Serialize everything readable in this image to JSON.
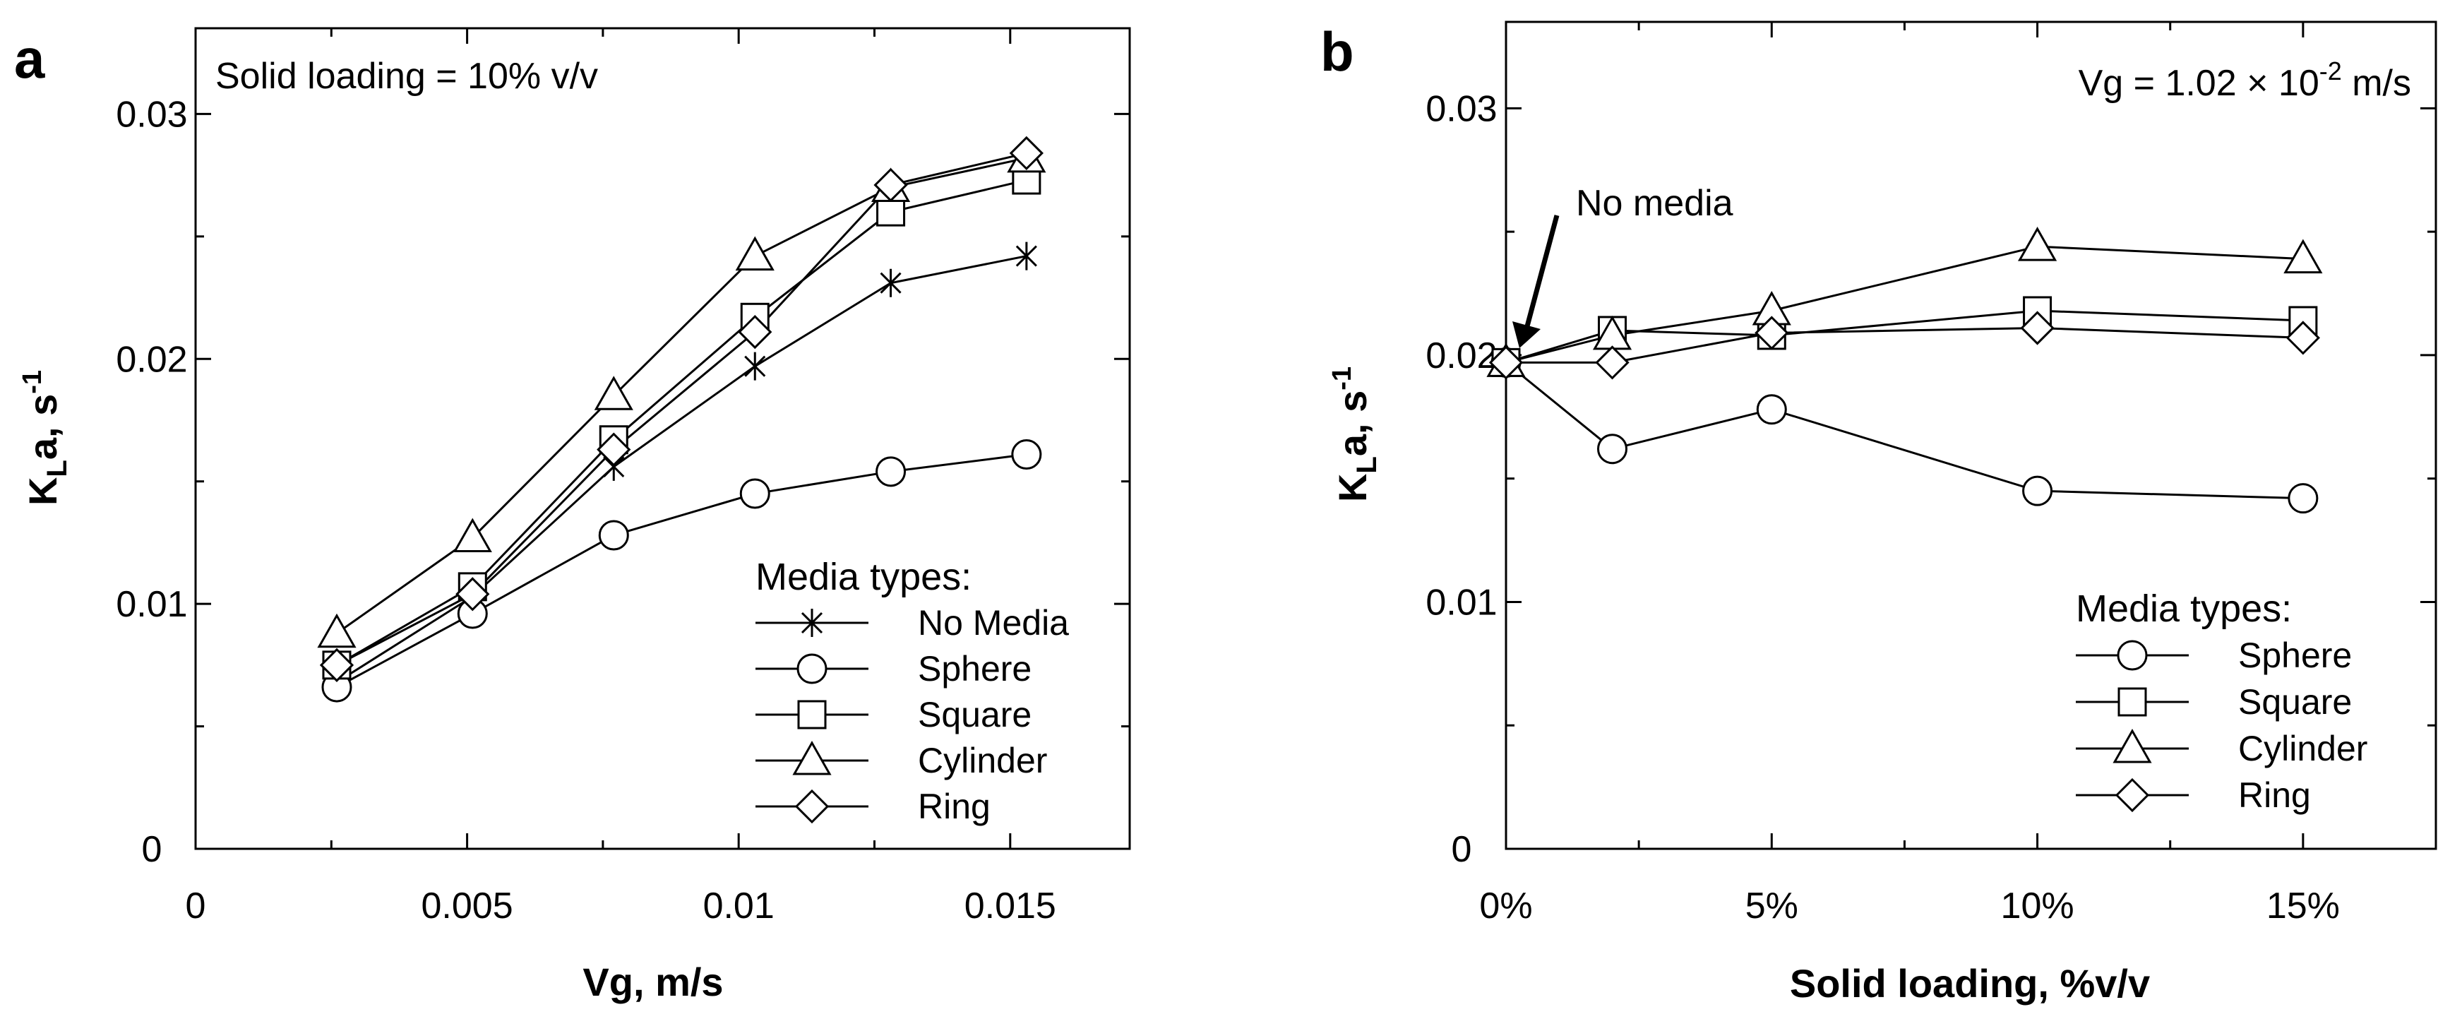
{
  "chart_data": [
    {
      "panel": "a",
      "type": "line",
      "annotation": "Solid loading = 10% v/v",
      "xlabel": "Vg, m/s",
      "ylabel_main": "K",
      "ylabel_sub": "L",
      "ylabel_rest": "a, s",
      "ylabel_sup": "-1",
      "xlim": [
        0,
        0.0172
      ],
      "ylim": [
        0,
        0.0335
      ],
      "xticks": [
        0,
        0.005,
        0.01,
        0.015
      ],
      "xtick_labels": [
        "0",
        "0.005",
        "0.01",
        "0.015"
      ],
      "yticks": [
        0,
        0.01,
        0.02,
        0.03
      ],
      "ytick_labels": [
        "0",
        "0.01",
        "0.02",
        "0.03"
      ],
      "legend_title": "Media types:",
      "x": [
        0.0026,
        0.0051,
        0.0077,
        0.0103,
        0.0128,
        0.0153
      ],
      "series": [
        {
          "name": "No Media",
          "marker": "asterisk",
          "values": [
            0.0068,
            0.0103,
            0.0156,
            0.0197,
            0.0231,
            0.0242
          ]
        },
        {
          "name": "Sphere",
          "marker": "circle",
          "values": [
            0.0066,
            0.0096,
            0.0128,
            0.0145,
            0.0154,
            0.0161
          ]
        },
        {
          "name": "Square",
          "marker": "square",
          "values": [
            0.0075,
            0.0107,
            0.0167,
            0.0217,
            0.026,
            0.0273
          ]
        },
        {
          "name": "Cylinder",
          "marker": "triangle",
          "values": [
            0.0088,
            0.0127,
            0.0185,
            0.0242,
            0.027,
            0.0282
          ]
        },
        {
          "name": "Ring",
          "marker": "diamond",
          "values": [
            0.0075,
            0.0104,
            0.0163,
            0.0211,
            0.0271,
            0.0284
          ]
        }
      ]
    },
    {
      "panel": "b",
      "type": "line",
      "annotation_main": "Vg = 1.02 × 10",
      "annotation_sup": "-2",
      "annotation_unit": " m/s",
      "arrow_label": "No media",
      "xlabel": "Solid loading, %v/v",
      "ylabel_main": "K",
      "ylabel_sub": "L",
      "ylabel_rest": "a, s",
      "ylabel_sup": "-1",
      "xlim": [
        0,
        17.5
      ],
      "ylim": [
        0,
        0.0335
      ],
      "xticks": [
        0,
        5,
        10,
        15
      ],
      "xtick_labels": [
        "0%",
        "5%",
        "10%",
        "15%"
      ],
      "yticks": [
        0,
        0.01,
        0.02,
        0.03
      ],
      "ytick_labels": [
        "0",
        "0.01",
        "0.02",
        "0.03"
      ],
      "legend_title": "Media types:",
      "x": [
        0,
        2,
        5,
        10,
        15
      ],
      "series": [
        {
          "name": "Sphere",
          "marker": "circle",
          "values": [
            0.0197,
            0.0162,
            0.0178,
            0.0145,
            0.0142
          ]
        },
        {
          "name": "Square",
          "marker": "square",
          "values": [
            0.0197,
            0.021,
            0.0208,
            0.0218,
            0.0214
          ]
        },
        {
          "name": "Cylinder",
          "marker": "triangle",
          "values": [
            0.0197,
            0.0208,
            0.0218,
            0.0244,
            0.0239
          ]
        },
        {
          "name": "Ring",
          "marker": "diamond",
          "values": [
            0.0197,
            0.0197,
            0.0209,
            0.0211,
            0.0207
          ]
        }
      ]
    }
  ]
}
